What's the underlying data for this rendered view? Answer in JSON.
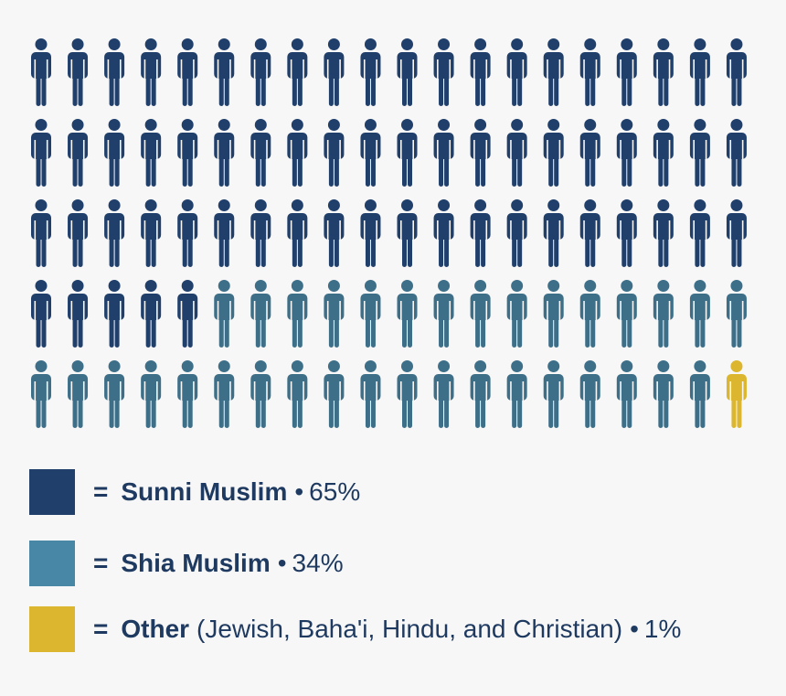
{
  "chart_data": {
    "type": "pictograph",
    "total_icons": 100,
    "icons_per_row": 20,
    "series": [
      {
        "name": "Sunni Muslim",
        "value": 65,
        "unit": "%",
        "color": "#203f6b",
        "note": ""
      },
      {
        "name": "Shia Muslim",
        "value": 34,
        "unit": "%",
        "color": "#3e6f88",
        "note": "(Jewish, Baha'i, Hindu, and Christian)"
      },
      {
        "name": "Other",
        "value": 1,
        "unit": "%",
        "color": "#dbb62e",
        "note": "(Jewish, Baha'i, Hindu, and Christian)"
      }
    ],
    "legend_swatch_colors": [
      "#203f6b",
      "#4887a5",
      "#dbb62e"
    ],
    "legend": [
      {
        "equals": "=",
        "name": "Sunni Muslim",
        "note": "",
        "bullet": "•",
        "percent": "65%"
      },
      {
        "equals": "=",
        "name": "Shia Muslim",
        "note": "",
        "bullet": "•",
        "percent": "34%"
      },
      {
        "equals": "=",
        "name": "Other",
        "note": "(Jewish, Baha'i, Hindu, and Christian)",
        "bullet": "•",
        "percent": "1%"
      }
    ]
  }
}
